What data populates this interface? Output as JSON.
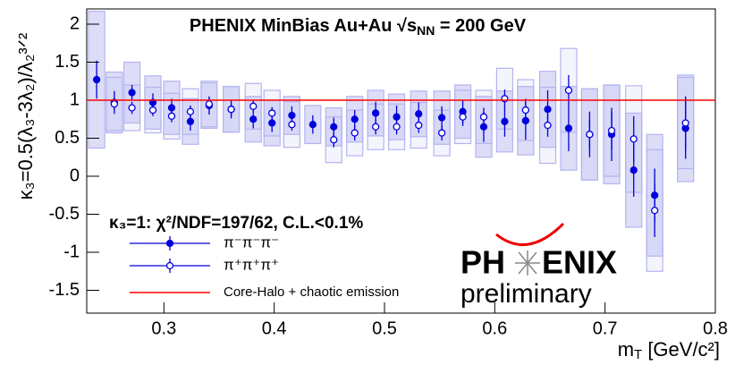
{
  "chart_data": {
    "type": "scatter",
    "title_parts": [
      "PHENIX MinBias Au+Au √s",
      "NN",
      " = 200 GeV"
    ],
    "ylabel": "κ₃=0.5(λ₃-3λ₂)/λ₂³ᐟ²",
    "xlabel_parts": [
      "m",
      "T",
      " [GeV/c²]"
    ],
    "annotation": "κ₃=1: χ²/NDF=197/62, C.L.<0.1%",
    "xlim": [
      0.23,
      0.8
    ],
    "ylim": [
      -1.8,
      2.2
    ],
    "xticks": [
      0.3,
      0.4,
      0.5,
      0.6,
      0.7,
      0.8
    ],
    "yticks": [
      -1.5,
      -1,
      -0.5,
      0,
      0.5,
      1,
      1.5,
      2
    ],
    "sys_color": "#b4b4f0",
    "series": [
      {
        "name": "π⁻π⁻π⁻",
        "color": "#0000dd",
        "marker": "filled",
        "x": [
          0.239,
          0.255,
          0.271,
          0.29,
          0.307,
          0.324,
          0.341,
          0.361,
          0.381,
          0.398,
          0.416,
          0.435,
          0.454,
          0.473,
          0.492,
          0.511,
          0.531,
          0.552,
          0.571,
          0.59,
          0.609,
          0.628,
          0.648,
          0.667,
          0.686,
          0.706,
          0.726,
          0.745,
          0.773
        ],
        "values": [
          1.27,
          0.97,
          1.1,
          0.97,
          0.9,
          0.72,
          0.93,
          0.88,
          0.75,
          0.7,
          0.8,
          0.68,
          0.65,
          0.75,
          0.83,
          0.78,
          0.82,
          0.77,
          0.85,
          0.65,
          0.72,
          0.73,
          0.88,
          0.63,
          0.55,
          0.55,
          0.08,
          -0.25,
          0.63
        ],
        "errors": [
          0.25,
          0.15,
          0.1,
          0.12,
          0.12,
          0.12,
          0.12,
          0.12,
          0.12,
          0.12,
          0.12,
          0.12,
          0.12,
          0.12,
          0.15,
          0.15,
          0.15,
          0.15,
          0.15,
          0.2,
          0.2,
          0.25,
          0.25,
          0.3,
          0.3,
          0.35,
          0.35,
          0.35,
          0.4
        ],
        "sys": [
          0.9,
          0.4,
          0.4,
          0.35,
          0.35,
          0.3,
          0.3,
          0.3,
          0.3,
          0.3,
          0.25,
          0.25,
          0.25,
          0.3,
          0.3,
          0.3,
          0.3,
          0.35,
          0.35,
          0.4,
          0.4,
          0.45,
          0.5,
          0.55,
          0.6,
          0.65,
          0.75,
          0.8,
          0.7
        ]
      },
      {
        "name": "π⁺π⁺π⁺",
        "color": "#0000dd",
        "marker": "open",
        "x": [
          0.255,
          0.271,
          0.29,
          0.307,
          0.324,
          0.341,
          0.361,
          0.381,
          0.398,
          0.416,
          0.454,
          0.473,
          0.492,
          0.511,
          0.531,
          0.552,
          0.571,
          0.59,
          0.609,
          0.628,
          0.648,
          0.667,
          0.686,
          0.706,
          0.726,
          0.745,
          0.773
        ],
        "values": [
          0.95,
          0.9,
          0.87,
          0.79,
          0.85,
          0.95,
          0.88,
          0.92,
          0.83,
          0.68,
          0.48,
          0.57,
          0.65,
          0.65,
          0.67,
          0.57,
          0.78,
          0.78,
          1.02,
          0.87,
          0.67,
          1.13,
          0.55,
          0.6,
          0.49,
          -0.45,
          0.7
        ],
        "errors": [
          0.08,
          0.08,
          0.08,
          0.08,
          0.08,
          0.08,
          0.08,
          0.08,
          0.08,
          0.08,
          0.1,
          0.1,
          0.1,
          0.1,
          0.1,
          0.1,
          0.12,
          0.12,
          0.12,
          0.15,
          0.15,
          0.2,
          0.2,
          0.25,
          0.3,
          0.35,
          0.35
        ],
        "sys": [
          0.35,
          0.3,
          0.3,
          0.3,
          0.3,
          0.3,
          0.3,
          0.3,
          0.3,
          0.3,
          0.3,
          0.3,
          0.3,
          0.3,
          0.3,
          0.3,
          0.35,
          0.35,
          0.4,
          0.4,
          0.5,
          0.55,
          0.6,
          0.6,
          0.7,
          0.8,
          0.6
        ]
      }
    ],
    "reference": {
      "name": "Core-Halo + chaotic emission",
      "value": 1,
      "color": "#ff0000"
    },
    "logo": {
      "left": "PH",
      "right": "ENIX",
      "tag": "preliminary"
    }
  }
}
